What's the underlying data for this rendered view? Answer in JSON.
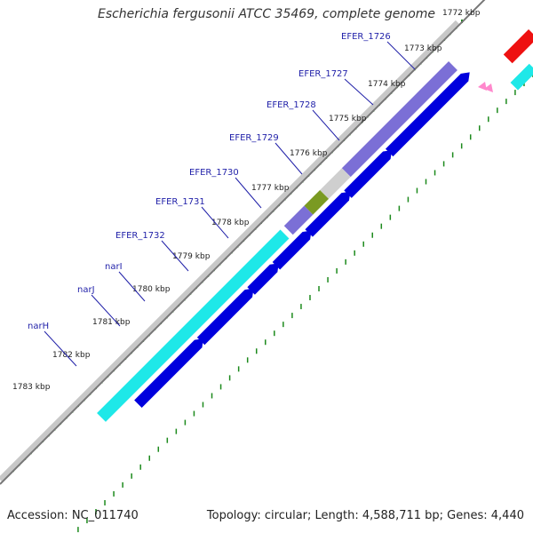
{
  "title": "Escherichia fergusonii ATCC 35469, complete genome",
  "footer": {
    "accession": "Accession: NC_011740",
    "topology": "Topology: circular; Length: 4,588,711 bp; Genes: 4,440"
  },
  "kbp_labels": [
    "1772 kbp",
    "1773 kbp",
    "1774 kbp",
    "1775 kbp",
    "1776 kbp",
    "1777 kbp",
    "1778 kbp",
    "1779 kbp",
    "1780 kbp",
    "1781 kbp",
    "1782 kbp",
    "1783 kbp"
  ],
  "gene_labels": [
    "EFER_1726",
    "EFER_1727",
    "EFER_1728",
    "EFER_1729",
    "EFER_1730",
    "EFER_1731",
    "EFER_1732",
    "narI",
    "narJ",
    "narH"
  ],
  "colors": {
    "cds": "#0000dd",
    "cog_purple": "#7b6fd6",
    "cog_cyan": "#1ee8e8",
    "cog_grey": "#cfcfcf",
    "cog_olive": "#7a9a22",
    "red": "#ee1111",
    "pink": "#ff88cc",
    "gene_label": "#1f1fa8",
    "tick": "#1c8a1c",
    "backbone": "#888888"
  }
}
